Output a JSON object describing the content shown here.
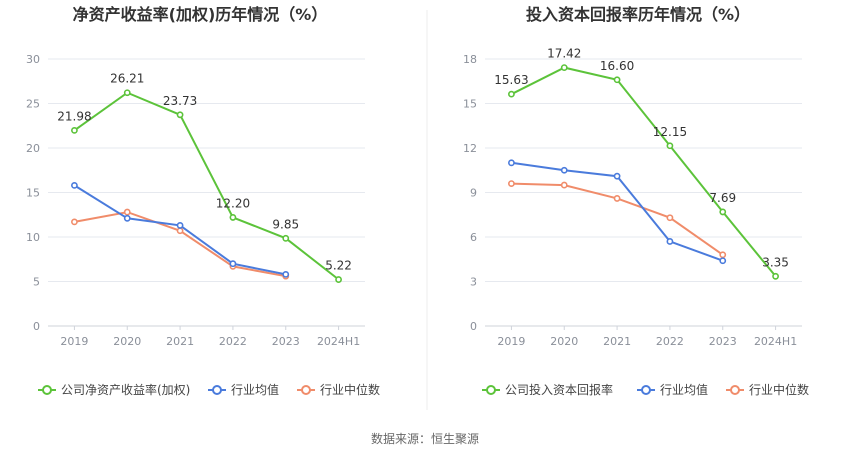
{
  "source_label": "数据来源：恒生聚源",
  "colors": {
    "company": "#5cc33a",
    "avg": "#4a7bdc",
    "median": "#f08c6a",
    "grid": "#e6e9ef",
    "axis_text": "#8a8f99",
    "label_text": "#333333"
  },
  "chart_data": [
    {
      "type": "line",
      "title": "净资产收益率(加权)历年情况（%）",
      "categories": [
        "2019",
        "2020",
        "2021",
        "2022",
        "2023",
        "2024H1"
      ],
      "ylim": [
        0,
        30
      ],
      "yticks": [
        0,
        5,
        10,
        15,
        20,
        25,
        30
      ],
      "grid": true,
      "legend_position": "bottom",
      "series": [
        {
          "name": "公司净资产收益率(加权)",
          "key": "company",
          "values": [
            21.98,
            26.21,
            23.73,
            12.2,
            9.85,
            5.22
          ],
          "labels": [
            "21.98",
            "26.21",
            "23.73",
            "12.20",
            "9.85",
            "5.22"
          ]
        },
        {
          "name": "行业均值",
          "key": "avg",
          "values": [
            15.8,
            12.1,
            11.3,
            7.0,
            5.8,
            null
          ]
        },
        {
          "name": "行业中位数",
          "key": "median",
          "values": [
            11.7,
            12.8,
            10.7,
            6.7,
            5.6,
            null
          ]
        }
      ]
    },
    {
      "type": "line",
      "title": "投入资本回报率历年情况（%）",
      "categories": [
        "2019",
        "2020",
        "2021",
        "2022",
        "2023",
        "2024H1"
      ],
      "ylim": [
        0,
        18
      ],
      "yticks": [
        0,
        3,
        6,
        9,
        12,
        15,
        18
      ],
      "grid": true,
      "legend_position": "bottom",
      "series": [
        {
          "name": "公司投入资本回报率",
          "key": "company",
          "values": [
            15.63,
            17.42,
            16.6,
            12.15,
            7.69,
            3.35
          ],
          "labels": [
            "15.63",
            "17.42",
            "16.60",
            "12.15",
            "7.69",
            "3.35"
          ]
        },
        {
          "name": "行业均值",
          "key": "avg",
          "values": [
            11.0,
            10.5,
            10.1,
            5.7,
            4.4,
            null
          ]
        },
        {
          "name": "行业中位数",
          "key": "median",
          "values": [
            9.6,
            9.5,
            8.6,
            7.3,
            4.8,
            null
          ]
        }
      ]
    }
  ]
}
